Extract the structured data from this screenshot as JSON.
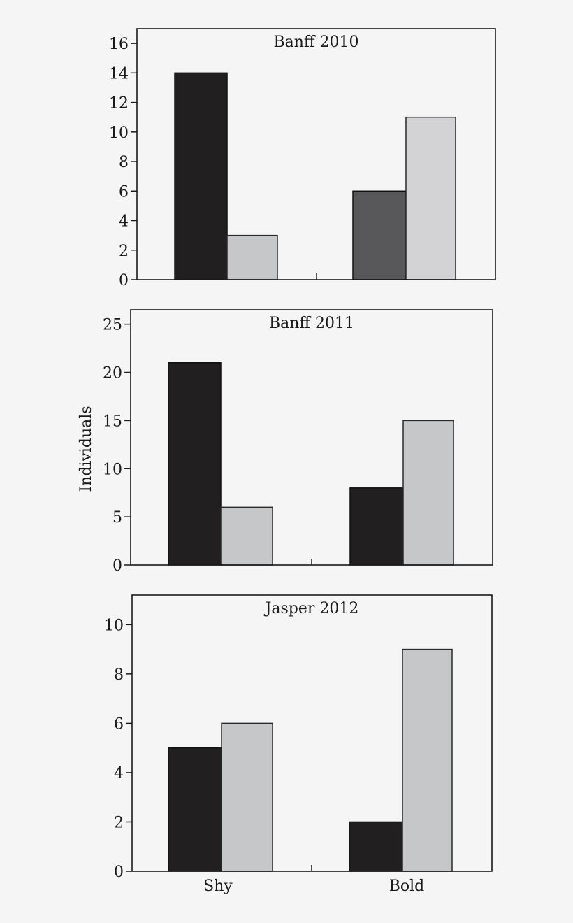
{
  "ylabel": "Individuals",
  "categories": [
    "Shy",
    "Bold"
  ],
  "chart_data": [
    {
      "type": "bar",
      "title": "Banff 2010",
      "categories": [
        "Shy",
        "Bold"
      ],
      "ylim": [
        0,
        17
      ],
      "yticks": [
        0,
        2,
        4,
        6,
        8,
        10,
        12,
        14,
        16
      ],
      "series": [
        {
          "values": [
            14,
            6
          ],
          "colors": [
            "#221f20",
            "#58585a"
          ]
        },
        {
          "values": [
            3,
            11
          ],
          "colors": [
            "#c6c7c9",
            "#d3d3d5"
          ]
        }
      ]
    },
    {
      "type": "bar",
      "title": "Banff 2011",
      "categories": [
        "Shy",
        "Bold"
      ],
      "ylim": [
        0,
        26.5
      ],
      "yticks": [
        0,
        5,
        10,
        15,
        20,
        25
      ],
      "series": [
        {
          "values": [
            21,
            8
          ],
          "colors": [
            "#221f20",
            "#221f20"
          ]
        },
        {
          "values": [
            6,
            15
          ],
          "colors": [
            "#c6c7c9",
            "#c6c7c9"
          ]
        }
      ]
    },
    {
      "type": "bar",
      "title": "Jasper 2012",
      "categories": [
        "Shy",
        "Bold"
      ],
      "ylim": [
        0,
        11.2
      ],
      "yticks": [
        0,
        2,
        4,
        6,
        8,
        10
      ],
      "series": [
        {
          "values": [
            5,
            2
          ],
          "colors": [
            "#221f20",
            "#221f20"
          ]
        },
        {
          "values": [
            6,
            9
          ],
          "colors": [
            "#c6c7c9",
            "#c6c7c9"
          ]
        }
      ]
    }
  ]
}
